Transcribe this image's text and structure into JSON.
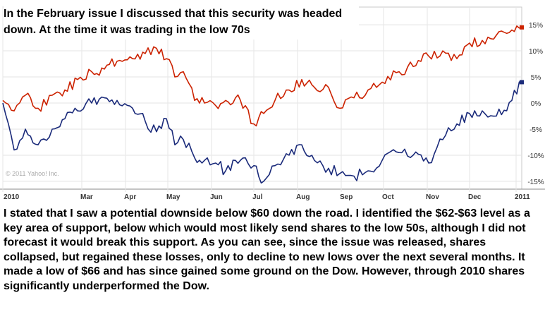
{
  "headline": "In the February issue I discussed that this security was headed down. At the time it was trading in the low 70s",
  "commentary": "I stated that I saw a potential downside below $60 down the road. I identified the $62-$63 level as a key area of support, below which would most likely send shares to the low 50s, although I did not forecast it would break this support. As you can see, since the issue was released, shares collapsed, but regained these losses, only to decline to new lows over the next several months. It made a low of $66 and has since gained some ground on the Dow. However, through 2010 shares significantly underperformed the Dow.",
  "chart_data": {
    "type": "line",
    "copyright": "© 2011 Yahoo! Inc.",
    "x_ticks": [
      "2010",
      "Mar",
      "Apr",
      "May",
      "Jun",
      "Jul",
      "Aug",
      "Sep",
      "Oct",
      "Nov",
      "Dec",
      "2011"
    ],
    "y_ticks": [
      "15%",
      "10%",
      "5%",
      "0%",
      "-5%",
      "-10%",
      "-15%"
    ],
    "ylim": [
      -16.5,
      16.5
    ],
    "grid": true,
    "series": [
      {
        "color": "#cc2200",
        "x": [
          "2010-01-04",
          "2010-01-12",
          "2010-01-20",
          "2010-01-29",
          "2010-02-08",
          "2010-02-17",
          "2010-02-26",
          "2010-03-08",
          "2010-03-17",
          "2010-03-26",
          "2010-04-06",
          "2010-04-15",
          "2010-04-23",
          "2010-04-30",
          "2010-05-06",
          "2010-05-12",
          "2010-05-20",
          "2010-05-27",
          "2010-06-04",
          "2010-06-11",
          "2010-06-18",
          "2010-06-25",
          "2010-07-01",
          "2010-07-08",
          "2010-07-16",
          "2010-07-26",
          "2010-08-04",
          "2010-08-13",
          "2010-08-23",
          "2010-08-31",
          "2010-09-10",
          "2010-09-20",
          "2010-09-30",
          "2010-10-12",
          "2010-10-22",
          "2010-11-02",
          "2010-11-12",
          "2010-11-22",
          "2010-12-01",
          "2010-12-10",
          "2010-12-20",
          "2010-12-31",
          "2011-01-07"
        ],
        "values": [
          0.5,
          -1.5,
          1.5,
          -1.0,
          1.5,
          2.5,
          4.5,
          6.0,
          6.5,
          8.0,
          8.5,
          9.5,
          10.5,
          8.5,
          5.0,
          6.0,
          0.5,
          0.0,
          -0.5,
          0.5,
          1.0,
          -0.5,
          -4.0,
          -2.0,
          0.5,
          2.5,
          4.5,
          3.0,
          3.0,
          -1.0,
          1.0,
          2.5,
          4.0,
          6.0,
          7.0,
          9.0,
          10.0,
          8.5,
          11.5,
          12.0,
          13.0,
          14.0,
          14.5
        ]
      },
      {
        "color": "#1a2a7a",
        "x": [
          "2010-01-04",
          "2010-01-12",
          "2010-01-20",
          "2010-01-29",
          "2010-02-08",
          "2010-02-17",
          "2010-02-26",
          "2010-03-08",
          "2010-03-17",
          "2010-03-26",
          "2010-04-06",
          "2010-04-15",
          "2010-04-23",
          "2010-04-30",
          "2010-05-06",
          "2010-05-12",
          "2010-05-20",
          "2010-05-27",
          "2010-06-04",
          "2010-06-11",
          "2010-06-18",
          "2010-06-25",
          "2010-07-01",
          "2010-07-08",
          "2010-07-16",
          "2010-07-26",
          "2010-08-04",
          "2010-08-13",
          "2010-08-23",
          "2010-08-31",
          "2010-09-10",
          "2010-09-20",
          "2010-09-30",
          "2010-10-12",
          "2010-10-22",
          "2010-11-02",
          "2010-11-12",
          "2010-11-22",
          "2010-12-01",
          "2010-12-10",
          "2010-12-20",
          "2010-12-31",
          "2011-01-07"
        ],
        "values": [
          0.0,
          -9.0,
          -5.0,
          -8.0,
          -5.0,
          -3.0,
          -1.5,
          0.0,
          1.0,
          0.5,
          -1.0,
          -3.5,
          -5.5,
          -3.0,
          -8.0,
          -7.0,
          -10.5,
          -11.0,
          -11.5,
          -13.0,
          -11.0,
          -10.5,
          -12.0,
          -15.0,
          -12.0,
          -10.0,
          -8.0,
          -11.0,
          -12.5,
          -13.5,
          -14.0,
          -13.0,
          -11.0,
          -9.5,
          -10.0,
          -11.5,
          -7.0,
          -4.0,
          -2.0,
          -1.5,
          -2.5,
          0.5,
          4.0
        ]
      }
    ]
  }
}
